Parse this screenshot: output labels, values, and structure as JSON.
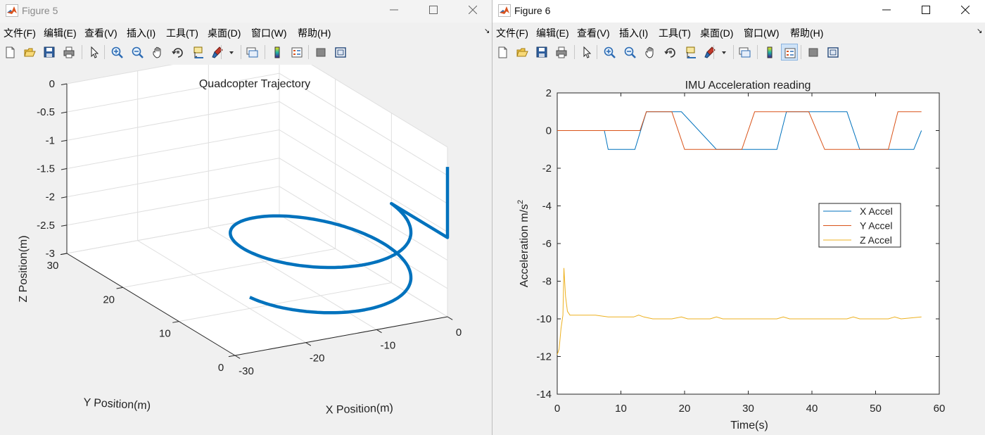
{
  "menu_items": [
    "文件(F)",
    "编辑(E)",
    "查看(V)",
    "插入(I)",
    "工具(T)",
    "桌面(D)",
    "窗口(W)",
    "帮助(H)"
  ],
  "menu_overflow": "↘",
  "toolbar_icons": [
    "new-figure-icon",
    "open-file-icon",
    "save-icon",
    "print-icon",
    "select-arrow-icon",
    "zoom-in-icon",
    "zoom-out-icon",
    "pan-hand-icon",
    "rotate-3d-icon",
    "data-cursor-icon",
    "brush-icon",
    "brush-dropdown-icon",
    "link-plot-icon",
    "colorbar-icon",
    "legend-icon",
    "hide-plot-tools-icon",
    "show-plot-tools-icon"
  ],
  "colors": {
    "line_blue": "#0072BD",
    "line_orange": "#D95319",
    "line_yellow": "#EDB120"
  },
  "figure5": {
    "window_title": "Figure 5",
    "chart_data": {
      "type": "line",
      "projection": "3d",
      "title": "Quadcopter Trajectory",
      "xlabel": "X Position(m)",
      "ylabel": "Y Position(m)",
      "zlabel": "Z Position(m)",
      "xlim": [
        -30,
        0
      ],
      "ylim": [
        0,
        30
      ],
      "zlim": [
        -3,
        0
      ],
      "x_ticks": [
        "-30",
        "-20",
        "-10",
        "0"
      ],
      "y_ticks": [
        "0",
        "10",
        "20",
        "30"
      ],
      "z_ticks": [
        "0",
        "-0.5",
        "-1",
        "-1.5",
        "-2",
        "-2.5",
        "-3"
      ],
      "grid": true,
      "series": [
        {
          "color": "#0072BD",
          "path": "climb to z=-1.6 at (0,0), then helical descent at radius 10 about (-10,10), about 1.5 turns to z=-2.8",
          "start": [
            0,
            0,
            -0.35
          ],
          "climb_end": [
            0,
            0,
            -1.6
          ],
          "center": [
            -10,
            10
          ],
          "radius": 10,
          "turns": 1.5,
          "end_z": -2.8
        }
      ]
    }
  },
  "figure6": {
    "window_title": "Figure 6",
    "chart_data": {
      "type": "line",
      "title": "IMU Acceleration reading",
      "xlabel": "Time(s)",
      "ylabel": "Acceleration m/s",
      "ylabel_superscript": "2",
      "xlim": [
        0,
        60
      ],
      "ylim": [
        -14,
        2
      ],
      "x_ticks": [
        "0",
        "10",
        "20",
        "30",
        "40",
        "50",
        "60"
      ],
      "y_ticks": [
        "2",
        "0",
        "-2",
        "-4",
        "-6",
        "-8",
        "-10",
        "-12",
        "-14"
      ],
      "grid": false,
      "legend_position": "right",
      "series": [
        {
          "name": "X Accel",
          "color": "#0072BD",
          "x": [
            0,
            7.4,
            8,
            12.2,
            14,
            19.5,
            25,
            34.5,
            36,
            45.5,
            47.5,
            56,
            57.2
          ],
          "y": [
            0,
            0,
            -1,
            -1,
            1,
            1,
            -1,
            -1,
            1,
            1,
            -1,
            -1,
            0
          ]
        },
        {
          "name": "Y Accel",
          "color": "#D95319",
          "x": [
            0,
            13,
            14,
            18,
            20,
            29,
            31,
            39.5,
            42,
            52,
            53.5,
            57.2
          ],
          "y": [
            0,
            0,
            1,
            1,
            -1,
            -1,
            1,
            1,
            -1,
            -1,
            1,
            1
          ]
        },
        {
          "name": "Z Accel",
          "color": "#EDB120",
          "x": [
            0,
            0.3,
            0.6,
            0.9,
            1.05,
            1.3,
            1.6,
            2,
            3,
            6,
            8,
            12,
            12.8,
            13.6,
            15,
            18,
            19.5,
            20.5,
            24,
            25,
            26,
            34.5,
            35.5,
            36.5,
            45.5,
            46.5,
            47.5,
            52,
            53,
            54,
            57.2
          ],
          "y": [
            -11.9,
            -11.6,
            -10.5,
            -9.8,
            -7.3,
            -8.8,
            -9.6,
            -9.8,
            -9.8,
            -9.8,
            -9.9,
            -9.9,
            -9.8,
            -9.9,
            -10,
            -10,
            -9.9,
            -10,
            -10,
            -9.9,
            -10,
            -10,
            -9.9,
            -10,
            -10,
            -9.9,
            -10,
            -10,
            -9.9,
            -10,
            -9.9
          ]
        }
      ]
    }
  }
}
